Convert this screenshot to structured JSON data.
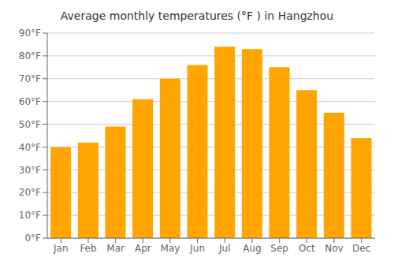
{
  "chart_data": {
    "type": "bar",
    "title": "Average monthly temperatures (°F ) in Hangzhou",
    "categories": [
      "Jan",
      "Feb",
      "Mar",
      "Apr",
      "May",
      "Jun",
      "Jul",
      "Aug",
      "Sep",
      "Oct",
      "Nov",
      "Dec"
    ],
    "values": [
      40,
      42,
      49,
      61,
      70,
      76,
      84,
      83,
      75,
      65,
      55,
      44
    ],
    "color": "#FFA500",
    "ylim": [
      0,
      90
    ],
    "yticks": [
      {
        "value": 0,
        "label": "0°F"
      },
      {
        "value": 10,
        "label": "10°F"
      },
      {
        "value": 20,
        "label": "20°F"
      },
      {
        "value": 30,
        "label": "30°F"
      },
      {
        "value": 40,
        "label": "40°F"
      },
      {
        "value": 50,
        "label": "50°F"
      },
      {
        "value": 60,
        "label": "60°F"
      },
      {
        "value": 70,
        "label": "70°F"
      },
      {
        "value": 80,
        "label": "80°F"
      },
      {
        "value": 90,
        "label": "90°F"
      }
    ],
    "grid": true
  }
}
